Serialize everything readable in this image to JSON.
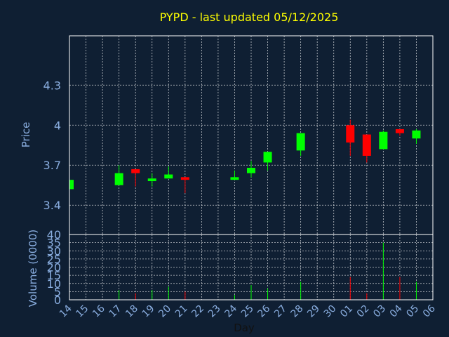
{
  "chart_data": {
    "type": "candlestick",
    "title": "PYPD - last updated 05/12/2025",
    "ylabel_price": "Price",
    "ylabel_volume": "Volume (0000)",
    "xlabel": "Day",
    "price_ylim": [
      3.18,
      4.67
    ],
    "price_ticks": [
      "3.4",
      "3.7",
      "4",
      "4.3"
    ],
    "volume_ylim": [
      0,
      40
    ],
    "volume_ticks": [
      "0",
      "5",
      "10",
      "15",
      "20",
      "25",
      "30",
      "35",
      "40"
    ],
    "x_ticks": [
      "14",
      "15",
      "16",
      "17",
      "18",
      "19",
      "20",
      "21",
      "22",
      "23",
      "24",
      "25",
      "26",
      "27",
      "28",
      "29",
      "30",
      "01",
      "02",
      "03",
      "04",
      "05",
      "06"
    ],
    "grid": true,
    "up_color": "#00ff00",
    "down_color": "#ff0000",
    "candles": [
      {
        "day": "14",
        "open": 3.52,
        "high": 3.59,
        "low": 3.52,
        "close": 3.59,
        "volume": 0
      },
      {
        "day": "17",
        "open": 3.55,
        "high": 3.7,
        "low": 3.55,
        "close": 3.64,
        "volume": 6
      },
      {
        "day": "18",
        "open": 3.67,
        "high": 3.67,
        "low": 3.54,
        "close": 3.64,
        "volume": 4
      },
      {
        "day": "19",
        "open": 3.58,
        "high": 3.64,
        "low": 3.54,
        "close": 3.6,
        "volume": 6
      },
      {
        "day": "20",
        "open": 3.6,
        "high": 3.69,
        "low": 3.6,
        "close": 3.63,
        "volume": 8
      },
      {
        "day": "21",
        "open": 3.61,
        "high": 3.61,
        "low": 3.49,
        "close": 3.59,
        "volume": 5
      },
      {
        "day": "24",
        "open": 3.59,
        "high": 3.66,
        "low": 3.59,
        "close": 3.61,
        "volume": 3
      },
      {
        "day": "25",
        "open": 3.64,
        "high": 3.73,
        "low": 3.61,
        "close": 3.68,
        "volume": 9
      },
      {
        "day": "26",
        "open": 3.72,
        "high": 3.8,
        "low": 3.66,
        "close": 3.8,
        "volume": 7
      },
      {
        "day": "28",
        "open": 3.81,
        "high": 3.94,
        "low": 3.77,
        "close": 3.94,
        "volume": 11
      },
      {
        "day": "01",
        "open": 4.0,
        "high": 4.04,
        "low": 3.77,
        "close": 3.87,
        "volume": 14
      },
      {
        "day": "02",
        "open": 3.93,
        "high": 3.93,
        "low": 3.72,
        "close": 3.77,
        "volume": 4
      },
      {
        "day": "03",
        "open": 3.82,
        "high": 3.96,
        "low": 3.82,
        "close": 3.95,
        "volume": 35
      },
      {
        "day": "04",
        "open": 3.97,
        "high": 3.97,
        "low": 3.92,
        "close": 3.94,
        "volume": 14
      },
      {
        "day": "05",
        "open": 3.9,
        "high": 3.97,
        "low": 3.86,
        "close": 3.96,
        "volume": 11
      }
    ]
  }
}
